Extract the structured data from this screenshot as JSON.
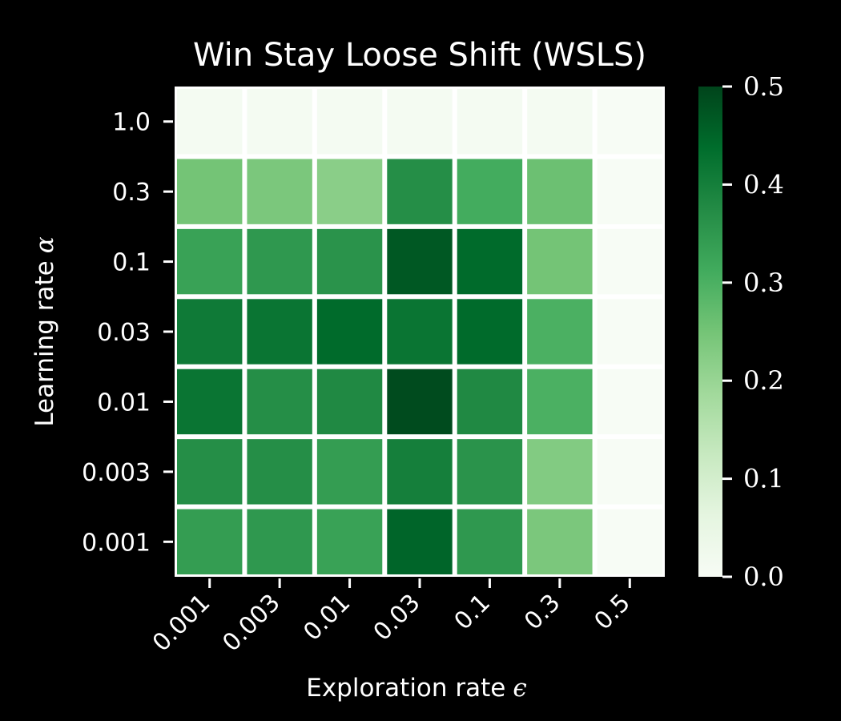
{
  "chart_data": {
    "type": "heatmap",
    "title": "Win Stay Loose Shift (WSLS)",
    "xlabel": "Exploration rate",
    "xlabel_symbol": "ϵ",
    "ylabel": "Learning rate",
    "ylabel_symbol": "α",
    "x_categories": [
      "0.001",
      "0.003",
      "0.01",
      "0.03",
      "0.1",
      "0.3",
      "0.5"
    ],
    "y_categories": [
      "1.0",
      "0.3",
      "0.1",
      "0.03",
      "0.01",
      "0.003",
      "0.001"
    ],
    "values": [
      [
        0.01,
        0.01,
        0.01,
        0.01,
        0.01,
        0.01,
        0.0
      ],
      [
        0.25,
        0.24,
        0.22,
        0.37,
        0.31,
        0.26,
        0.0
      ],
      [
        0.33,
        0.35,
        0.36,
        0.47,
        0.44,
        0.25,
        0.0
      ],
      [
        0.41,
        0.42,
        0.44,
        0.42,
        0.44,
        0.3,
        0.0
      ],
      [
        0.42,
        0.37,
        0.38,
        0.49,
        0.38,
        0.3,
        0.0
      ],
      [
        0.37,
        0.37,
        0.34,
        0.4,
        0.36,
        0.23,
        0.0
      ],
      [
        0.34,
        0.35,
        0.33,
        0.45,
        0.35,
        0.24,
        0.0
      ]
    ],
    "colorbar": {
      "min": 0.0,
      "max": 0.5,
      "ticks": [
        "0.0",
        "0.1",
        "0.2",
        "0.3",
        "0.4",
        "0.5"
      ],
      "colormap": [
        "#f7fcf5",
        "#e5f5e0",
        "#c7e9c0",
        "#a1d99b",
        "#74c476",
        "#41ab5d",
        "#238b45",
        "#006d2c",
        "#00441b"
      ]
    },
    "grid_color": "#ffffff",
    "background": "#000000",
    "text_color": "#ffffff"
  }
}
